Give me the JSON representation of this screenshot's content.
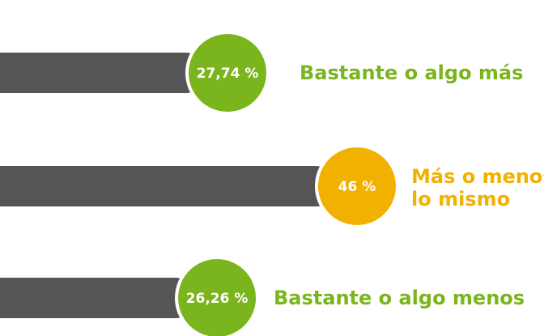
{
  "chart_data": {
    "type": "bar",
    "orientation": "horizontal",
    "categories": [
      "Bastante o algo más",
      "Más o menos lo mismo",
      "Bastante o algo menos"
    ],
    "values": [
      27.74,
      46,
      26.26
    ],
    "value_labels": [
      "27,74 %",
      "46 %",
      "26,26 %"
    ],
    "colors": [
      "#7ab51d",
      "#f2b100",
      "#7ab51d"
    ],
    "bar_color": "#555555"
  }
}
